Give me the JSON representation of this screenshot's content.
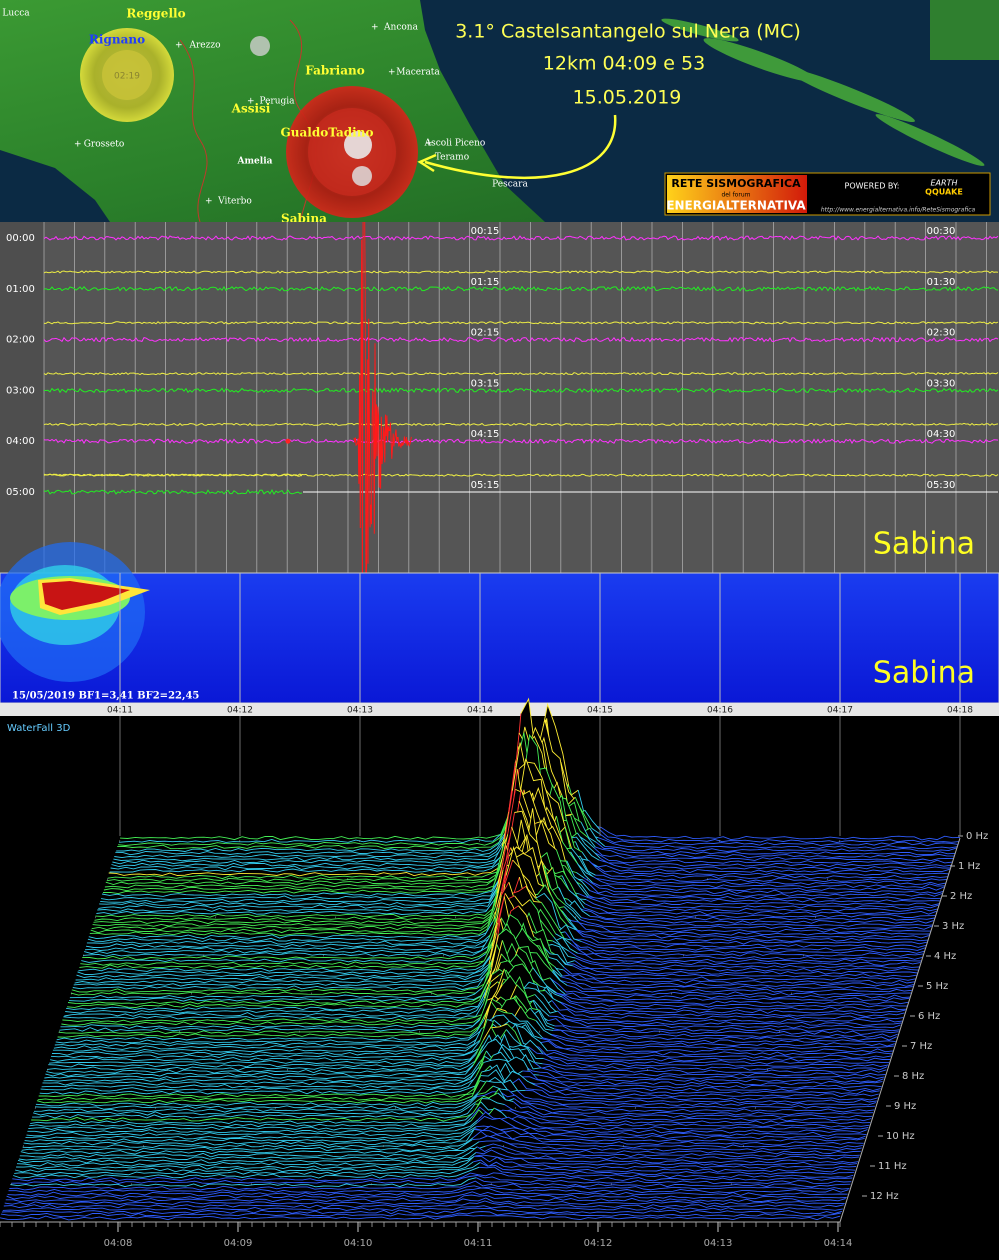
{
  "map": {
    "title_lines": [
      "3.1° Castelsantangelo sul Nera (MC)",
      "12km 04:09 e 53",
      "15.05.2019"
    ],
    "places": [
      "Reggello",
      "Rignano",
      "Arezzo",
      "Fabriano",
      "Macerata",
      "Assisi",
      "Perugia",
      "GualdoTadino",
      "Amelia",
      "Grosseto",
      "Viterbo",
      "Sabina",
      "Ancona",
      "Ascoli Piceno",
      "Teramo",
      "Pescara",
      "Lucca"
    ],
    "event_time": "02:19"
  },
  "logo": {
    "line1": "RETE SISMOGRAFICA",
    "line2": "del forum",
    "line3": "ENERGIALTERNATIVA",
    "powered": "POWERED BY:",
    "brand1": "EARTH",
    "brand2": "QQUAKE",
    "url": "http://www.energialternativa.info/ReteSismografica"
  },
  "helicorder": {
    "station": "Sabina",
    "hours": [
      "00:00",
      "01:00",
      "02:00",
      "03:00",
      "04:00",
      "05:00"
    ],
    "quarter_labels": [
      "00:15",
      "00:30",
      "01:15",
      "01:30",
      "02:15",
      "02:30",
      "03:15",
      "03:30",
      "04:15",
      "04:30",
      "05:15",
      "05:30"
    ]
  },
  "spectrogram": {
    "station": "Sabina",
    "caption": "15/05/2019 BF1=3,41 BF2=22,45",
    "time_labels": [
      "04:11",
      "04:12",
      "04:13",
      "04:14",
      "04:15",
      "04:16",
      "04:17",
      "04:18"
    ]
  },
  "waterfall": {
    "title": "WaterFall 3D",
    "frequency_labels": [
      "0 Hz",
      "1 Hz",
      "2 Hz",
      "3 Hz",
      "4 Hz",
      "5 Hz",
      "6 Hz",
      "7 Hz",
      "8 Hz",
      "9 Hz",
      "10 Hz",
      "11 Hz",
      "12 Hz"
    ],
    "time_labels": [
      "04:08",
      "04:09",
      "04:10",
      "04:11",
      "04:12",
      "04:13",
      "04:14"
    ]
  }
}
